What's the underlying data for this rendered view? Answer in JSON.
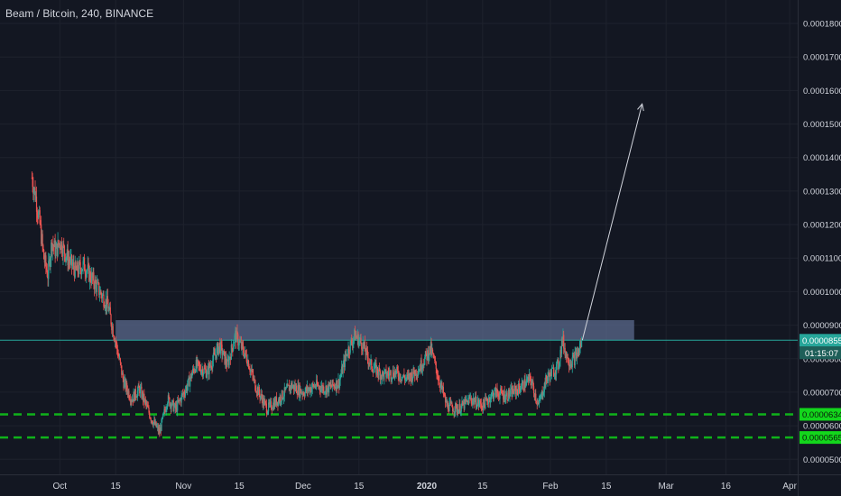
{
  "chart_title": "Beam / Bitcoin, 240, BINANCE",
  "colors": {
    "background": "#131722",
    "grid": "#1e222d",
    "axis_text": "#d1d4dc",
    "up_candle": "#26a69a",
    "down_candle": "#ef5350",
    "zone_fill": "#5b6a8c",
    "price_line": "#26a69a",
    "support_line": "#0fb21a",
    "support_label_bg": "#13d61c",
    "arrow": "#d1d4dc"
  },
  "chart_data": {
    "type": "candlestick",
    "title": "Beam / Bitcoin, 240, BINANCE",
    "symbol": "Beam / Bitcoin",
    "interval": "240",
    "exchange": "BINANCE",
    "ylim": [
      4.55e-05,
      0.000187
    ],
    "xlim": [
      "2019-09-16",
      "2020-04-03"
    ],
    "y_ticks": [
      "0.0001800",
      "0.0001700",
      "0.0001600",
      "0.0001500",
      "0.0001400",
      "0.0001300",
      "0.0001200",
      "0.0001100",
      "0.0001000",
      "0.0000900",
      "0.0000800",
      "0.0000700",
      "0.0000600",
      "0.0000500"
    ],
    "x_ticks": [
      {
        "label": "Oct",
        "date": "2019-10-01",
        "bold": false
      },
      {
        "label": "15",
        "date": "2019-10-15",
        "bold": false
      },
      {
        "label": "Nov",
        "date": "2019-11-01",
        "bold": false
      },
      {
        "label": "15",
        "date": "2019-11-15",
        "bold": false
      },
      {
        "label": "Dec",
        "date": "2019-12-01",
        "bold": false
      },
      {
        "label": "15",
        "date": "2019-12-15",
        "bold": false
      },
      {
        "label": "2020",
        "date": "2020-01-01",
        "bold": true
      },
      {
        "label": "15",
        "date": "2020-01-15",
        "bold": false
      },
      {
        "label": "Feb",
        "date": "2020-02-01",
        "bold": false
      },
      {
        "label": "15",
        "date": "2020-02-15",
        "bold": false
      },
      {
        "label": "Mar",
        "date": "2020-03-01",
        "bold": false
      },
      {
        "label": "16",
        "date": "2020-03-16",
        "bold": false
      },
      {
        "label": "Apr",
        "date": "2020-04-01",
        "bold": false
      }
    ],
    "price_path": [
      [
        "2019-09-24",
        0.000134
      ],
      [
        "2019-09-25",
        0.000128
      ],
      [
        "2019-09-26",
        0.00012
      ],
      [
        "2019-09-27",
        0.00011
      ],
      [
        "2019-09-28",
        0.000105
      ],
      [
        "2019-09-29",
        0.000115
      ],
      [
        "2019-09-30",
        0.000112
      ],
      [
        "2019-10-01",
        0.000115
      ],
      [
        "2019-10-03",
        0.00011
      ],
      [
        "2019-10-05",
        0.000106
      ],
      [
        "2019-10-07",
        0.000108
      ],
      [
        "2019-10-09",
        0.000104
      ],
      [
        "2019-10-11",
        0.0001
      ],
      [
        "2019-10-13",
        9.6e-05
      ],
      [
        "2019-10-15",
        8.5e-05
      ],
      [
        "2019-10-17",
        7.3e-05
      ],
      [
        "2019-10-19",
        6.8e-05
      ],
      [
        "2019-10-21",
        7.1e-05
      ],
      [
        "2019-10-24",
        6.2e-05
      ],
      [
        "2019-10-26",
        5.8e-05
      ],
      [
        "2019-10-28",
        6.8e-05
      ],
      [
        "2019-10-30",
        6.5e-05
      ],
      [
        "2019-11-02",
        7.2e-05
      ],
      [
        "2019-11-04",
        7.8e-05
      ],
      [
        "2019-11-07",
        7.6e-05
      ],
      [
        "2019-11-10",
        8.4e-05
      ],
      [
        "2019-11-12",
        7.8e-05
      ],
      [
        "2019-11-14",
        8.7e-05
      ],
      [
        "2019-11-17",
        8e-05
      ],
      [
        "2019-11-19",
        7.2e-05
      ],
      [
        "2019-11-22",
        6.5e-05
      ],
      [
        "2019-11-25",
        6.8e-05
      ],
      [
        "2019-11-28",
        7.2e-05
      ],
      [
        "2019-12-01",
        7e-05
      ],
      [
        "2019-12-04",
        7.2e-05
      ],
      [
        "2019-12-07",
        7.1e-05
      ],
      [
        "2019-12-10",
        7.3e-05
      ],
      [
        "2019-12-12",
        8.2e-05
      ],
      [
        "2019-12-14",
        8.7e-05
      ],
      [
        "2019-12-16",
        8.4e-05
      ],
      [
        "2019-12-18",
        7.8e-05
      ],
      [
        "2019-12-21",
        7.5e-05
      ],
      [
        "2019-12-24",
        7.6e-05
      ],
      [
        "2019-12-27",
        7.4e-05
      ],
      [
        "2019-12-30",
        7.7e-05
      ],
      [
        "2020-01-02",
        8.3e-05
      ],
      [
        "2020-01-04",
        7.4e-05
      ],
      [
        "2020-01-06",
        6.6e-05
      ],
      [
        "2020-01-09",
        6.5e-05
      ],
      [
        "2020-01-12",
        6.8e-05
      ],
      [
        "2020-01-15",
        6.6e-05
      ],
      [
        "2020-01-18",
        7e-05
      ],
      [
        "2020-01-21",
        6.9e-05
      ],
      [
        "2020-01-24",
        7.1e-05
      ],
      [
        "2020-01-27",
        7.4e-05
      ],
      [
        "2020-01-29",
        6.6e-05
      ],
      [
        "2020-01-31",
        7.4e-05
      ],
      [
        "2020-02-03",
        7.8e-05
      ],
      [
        "2020-02-04",
        8.6e-05
      ],
      [
        "2020-02-05",
        8.1e-05
      ],
      [
        "2020-02-06",
        7.9e-05
      ],
      [
        "2020-02-07",
        8e-05
      ],
      [
        "2020-02-08",
        8.2e-05
      ],
      [
        "2020-02-09",
        8.55e-05
      ]
    ],
    "annotations": {
      "resistance_zone": {
        "from_date": "2019-10-15",
        "to_date": "2020-02-22",
        "low": 8.55e-05,
        "high": 9.15e-05
      },
      "projection_arrow": {
        "from_date": "2020-02-09",
        "from_price": 8.55e-05,
        "to_date": "2020-02-24",
        "to_price": 0.000156
      },
      "support_levels": [
        6.34e-05,
        5.65e-05
      ]
    },
    "current_price": 8.55e-05
  },
  "price_axis": {
    "current_price_label": "0.0000855",
    "countdown_label": "01:15:07",
    "support_labels": [
      "0.0000634",
      "0.0000565"
    ]
  }
}
